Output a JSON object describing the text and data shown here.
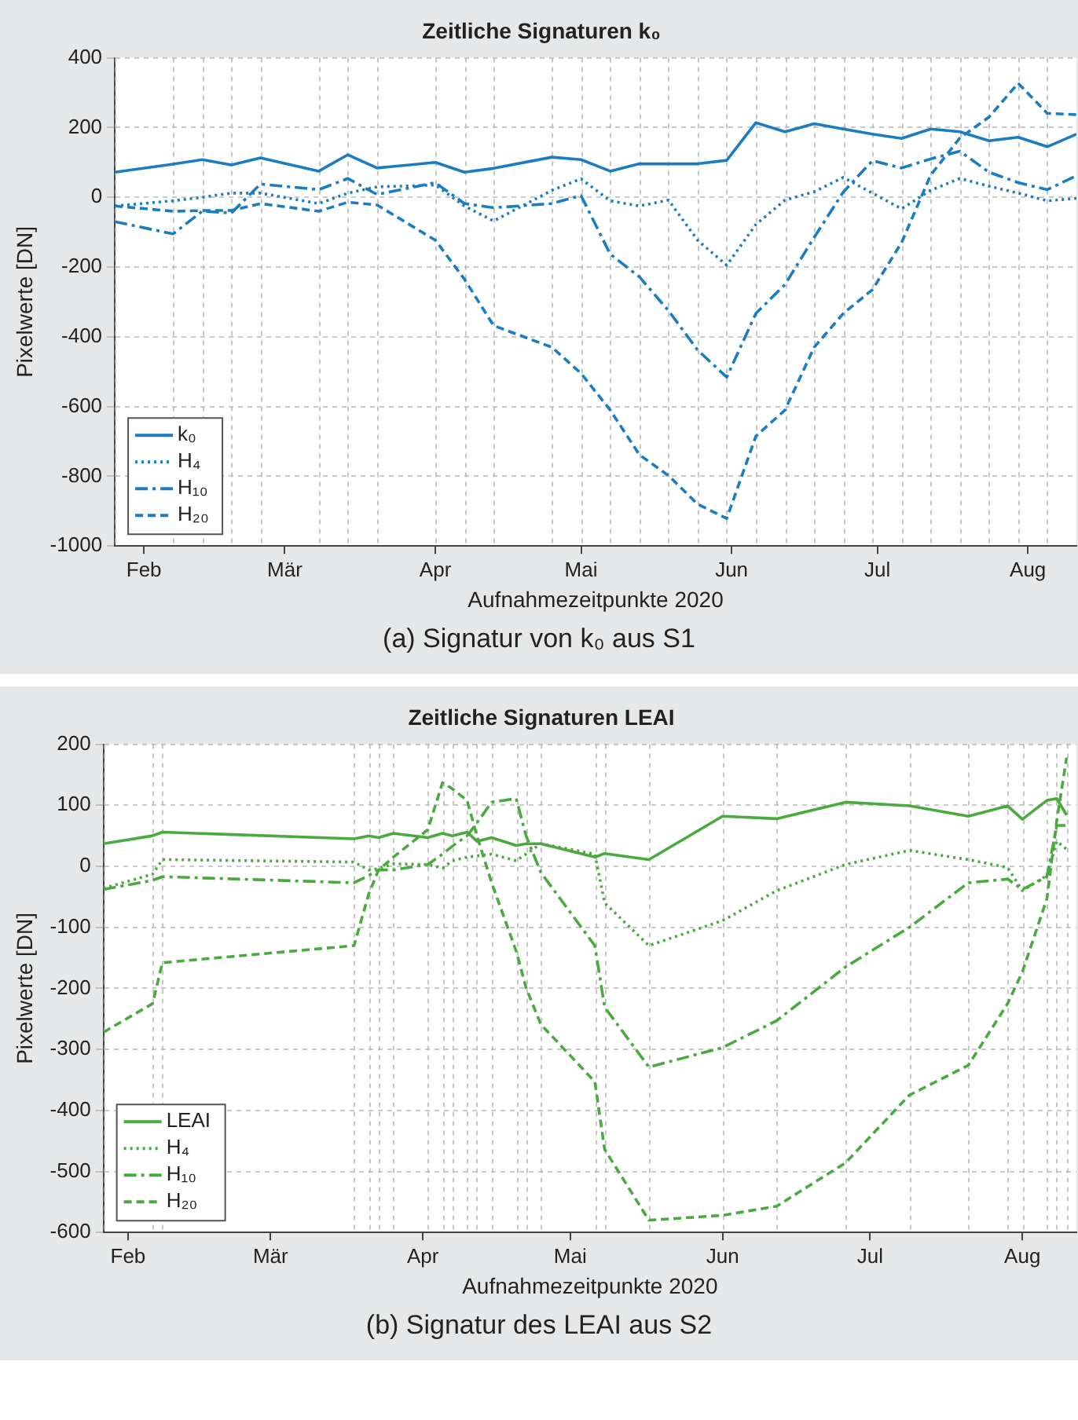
{
  "chart_data": [
    {
      "type": "line",
      "title": "Zeitliche Signaturen k₀",
      "xlabel": "Aufnahmezeitpunkte 2020",
      "ylabel": "Pixelwerte [DN]",
      "annotations": [
        "(a) Signatur von k₀ aus S1"
      ],
      "x": [
        "2020-01-26",
        "2020-02-07",
        "2020-02-13",
        "2020-02-19",
        "2020-02-25",
        "2020-03-08",
        "2020-03-14",
        "2020-03-20",
        "2020-04-01",
        "2020-04-07",
        "2020-04-13",
        "2020-04-25",
        "2020-05-01",
        "2020-05-07",
        "2020-05-13",
        "2020-05-19",
        "2020-05-25",
        "2020-05-31",
        "2020-06-06",
        "2020-06-12",
        "2020-06-18",
        "2020-06-24",
        "2020-06-30",
        "2020-07-06",
        "2020-07-12",
        "2020-07-18",
        "2020-07-24",
        "2020-07-30",
        "2020-08-05",
        "2020-08-11"
      ],
      "series": [
        {
          "name": "k₀",
          "color": "#1a7cc1",
          "line_style": "solid",
          "values": [
            72,
            95,
            108,
            93,
            113,
            75,
            122,
            84,
            100,
            72,
            83,
            115,
            108,
            75,
            96,
            96,
            96,
            106,
            214,
            188,
            211,
            196,
            181,
            169,
            196,
            188,
            162,
            172,
            145,
            181
          ]
        },
        {
          "name": "H₄",
          "color": "#1a7cc1",
          "line_style": "dotted",
          "values": [
            -25,
            -10,
            0,
            12,
            12,
            -18,
            12,
            30,
            35,
            -25,
            -68,
            20,
            53,
            -10,
            -25,
            -8,
            -123,
            -195,
            -78,
            -8,
            16,
            57,
            12,
            -33,
            20,
            54,
            32,
            12,
            -10,
            -3
          ]
        },
        {
          "name": "H₁₀",
          "color": "#1a7cc1",
          "line_style": "dashdot",
          "values": [
            -70,
            -105,
            -40,
            -45,
            38,
            22,
            54,
            8,
            42,
            -18,
            -30,
            -18,
            5,
            -163,
            -228,
            -325,
            -438,
            -516,
            -333,
            -250,
            -115,
            15,
            105,
            84,
            110,
            132,
            72,
            42,
            22,
            62
          ]
        },
        {
          "name": "H₂₀",
          "color": "#1a7cc1",
          "line_style": "dashed",
          "values": [
            -25,
            -40,
            -38,
            -38,
            -18,
            -40,
            -14,
            -22,
            -123,
            -235,
            -368,
            -430,
            -505,
            -610,
            -738,
            -798,
            -880,
            -921,
            -685,
            -610,
            -430,
            -333,
            -265,
            -130,
            64,
            170,
            230,
            327,
            241,
            237
          ]
        }
      ],
      "xlim": [
        "2020-01-26",
        "2020-08-11"
      ],
      "xticks": [
        {
          "value": "2020-02-01",
          "label": "Feb"
        },
        {
          "value": "2020-03-01",
          "label": "Mär"
        },
        {
          "value": "2020-04-01",
          "label": "Apr"
        },
        {
          "value": "2020-05-01",
          "label": "Mai"
        },
        {
          "value": "2020-06-01",
          "label": "Jun"
        },
        {
          "value": "2020-07-01",
          "label": "Jul"
        },
        {
          "value": "2020-08-01",
          "label": "Aug"
        }
      ],
      "ylim": [
        -1000,
        400
      ],
      "yticks": [
        -1000,
        -800,
        -600,
        -400,
        -200,
        0,
        200,
        400
      ],
      "grid": true,
      "legend": "bottom left",
      "marker": "none"
    },
    {
      "type": "line",
      "title": "Zeitliche Signaturen LEAI",
      "xlabel": "Aufnahmezeitpunkte 2020",
      "ylabel": "Pixelwerte [DN]",
      "annotations": [
        "(b) Signatur des LEAI aus S2"
      ],
      "x": [
        "2020-01-27",
        "2020-02-06",
        "2020-02-08",
        "2020-03-18",
        "2020-03-21",
        "2020-03-23",
        "2020-03-26",
        "2020-04-02",
        "2020-04-05",
        "2020-04-07",
        "2020-04-10",
        "2020-04-12",
        "2020-04-15",
        "2020-04-20",
        "2020-04-22",
        "2020-04-25",
        "2020-05-06",
        "2020-05-08",
        "2020-05-17",
        "2020-06-01",
        "2020-06-12",
        "2020-06-26",
        "2020-07-09",
        "2020-07-21",
        "2020-07-29",
        "2020-08-01",
        "2020-08-06",
        "2020-08-08",
        "2020-08-10"
      ],
      "series": [
        {
          "name": "LEAI",
          "color": "#4aaa3f",
          "line_style": "solid",
          "values": [
            37,
            50,
            56,
            45,
            50,
            47,
            54,
            47,
            54,
            50,
            56,
            41,
            47,
            34,
            37,
            37,
            15,
            21,
            11,
            82,
            78,
            105,
            99,
            82,
            99,
            77,
            108,
            111,
            84
          ]
        },
        {
          "name": "H₄",
          "color": "#4aaa3f",
          "line_style": "dotted",
          "values": [
            -36,
            -13,
            11,
            7,
            -6,
            -4,
            4,
            3,
            -3,
            9,
            15,
            17,
            20,
            9,
            20,
            37,
            20,
            -60,
            -130,
            -89,
            -40,
            3,
            26,
            11,
            -2,
            -40,
            -15,
            41,
            28
          ]
        },
        {
          "name": "H₁₀",
          "color": "#4aaa3f",
          "line_style": "dashdot",
          "values": [
            -38,
            -23,
            -17,
            -27,
            -15,
            -6,
            -6,
            3,
            20,
            33,
            50,
            71,
            105,
            111,
            50,
            -10,
            -130,
            -231,
            -329,
            -297,
            -253,
            -165,
            -100,
            -27,
            -21,
            -38,
            -17,
            67,
            67
          ]
        },
        {
          "name": "H₂₀",
          "color": "#4aaa3f",
          "line_style": "dashed",
          "values": [
            -272,
            -225,
            -158,
            -130,
            -45,
            -6,
            15,
            60,
            137,
            127,
            108,
            50,
            -27,
            -139,
            -199,
            -259,
            -353,
            -464,
            -580,
            -572,
            -557,
            -486,
            -375,
            -326,
            -225,
            -173,
            -53,
            75,
            178
          ]
        }
      ],
      "xlim": [
        "2020-01-27",
        "2020-08-12"
      ],
      "xticks": [
        {
          "value": "2020-02-01",
          "label": "Feb"
        },
        {
          "value": "2020-03-01",
          "label": "Mär"
        },
        {
          "value": "2020-04-01",
          "label": "Apr"
        },
        {
          "value": "2020-05-01",
          "label": "Mai"
        },
        {
          "value": "2020-06-01",
          "label": "Jun"
        },
        {
          "value": "2020-07-01",
          "label": "Jul"
        },
        {
          "value": "2020-08-01",
          "label": "Aug"
        }
      ],
      "ylim": [
        -600,
        200
      ],
      "yticks": [
        -600,
        -500,
        -400,
        -300,
        -200,
        -100,
        0,
        100,
        200
      ],
      "grid": true,
      "legend": "bottom left",
      "marker": "none"
    }
  ]
}
